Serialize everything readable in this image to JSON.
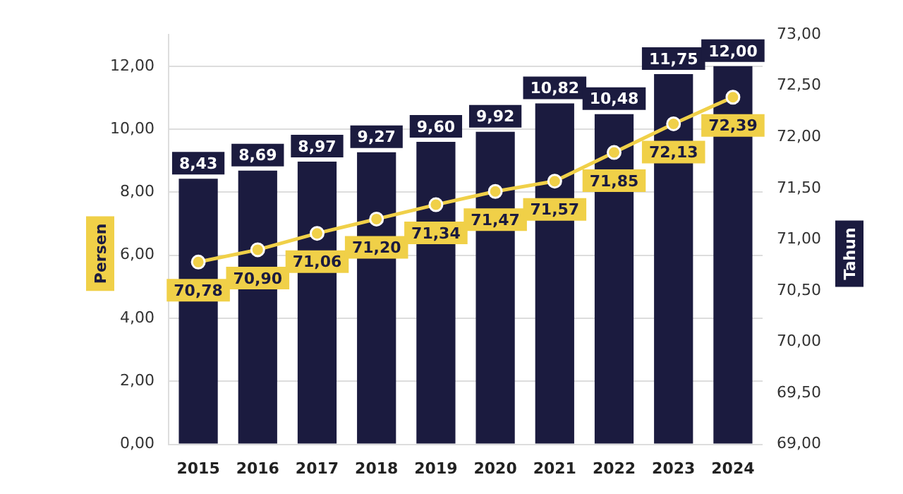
{
  "chart_data": {
    "type": "bar",
    "categories": [
      "2015",
      "2016",
      "2017",
      "2018",
      "2019",
      "2020",
      "2021",
      "2022",
      "2023",
      "2024"
    ],
    "ylabel": "Persen",
    "y2label": "Tahun",
    "series": [
      {
        "color": "#1b1b3f",
        "values": [
          8.43,
          8.69,
          8.97,
          9.27,
          9.6,
          9.92,
          10.82,
          10.48,
          11.75,
          12.0
        ],
        "value_labels": [
          "8,43",
          "8,69",
          "8,97",
          "9,27",
          "9,60",
          "9,92",
          "10,82",
          "10,48",
          "11,75",
          "12,00"
        ]
      },
      {
        "type": "line",
        "axis": "y2",
        "color": "#f0d048",
        "marker": "circle",
        "values": [
          70.78,
          70.9,
          71.06,
          71.2,
          71.34,
          71.47,
          71.57,
          71.85,
          72.13,
          72.39
        ],
        "value_labels": [
          "70,78",
          "70,90",
          "71,06",
          "71,20",
          "71,34",
          "71,47",
          "71,57",
          "71,85",
          "72,13",
          "72,39"
        ]
      }
    ],
    "ylim": [
      0,
      13
    ],
    "yticks": [
      {
        "value": 0,
        "label": "0,00"
      },
      {
        "value": 2,
        "label": "2,00"
      },
      {
        "value": 4,
        "label": "4,00"
      },
      {
        "value": 6,
        "label": "6,00"
      },
      {
        "value": 8,
        "label": "8,00"
      },
      {
        "value": 10,
        "label": "10,00"
      },
      {
        "value": 12,
        "label": "12,00"
      }
    ],
    "y2lim": [
      69,
      73
    ],
    "y2ticks": [
      {
        "value": 69,
        "label": "69,00"
      },
      {
        "value": 69.5,
        "label": "69,50"
      },
      {
        "value": 70,
        "label": "70,00"
      },
      {
        "value": 70.5,
        "label": "70,50"
      },
      {
        "value": 71,
        "label": "71,00"
      },
      {
        "value": 71.5,
        "label": "71,50"
      },
      {
        "value": 72,
        "label": "72,00"
      },
      {
        "value": 72.5,
        "label": "72,50"
      },
      {
        "value": 73,
        "label": "73,00"
      }
    ],
    "grid": "y",
    "legend": false
  }
}
